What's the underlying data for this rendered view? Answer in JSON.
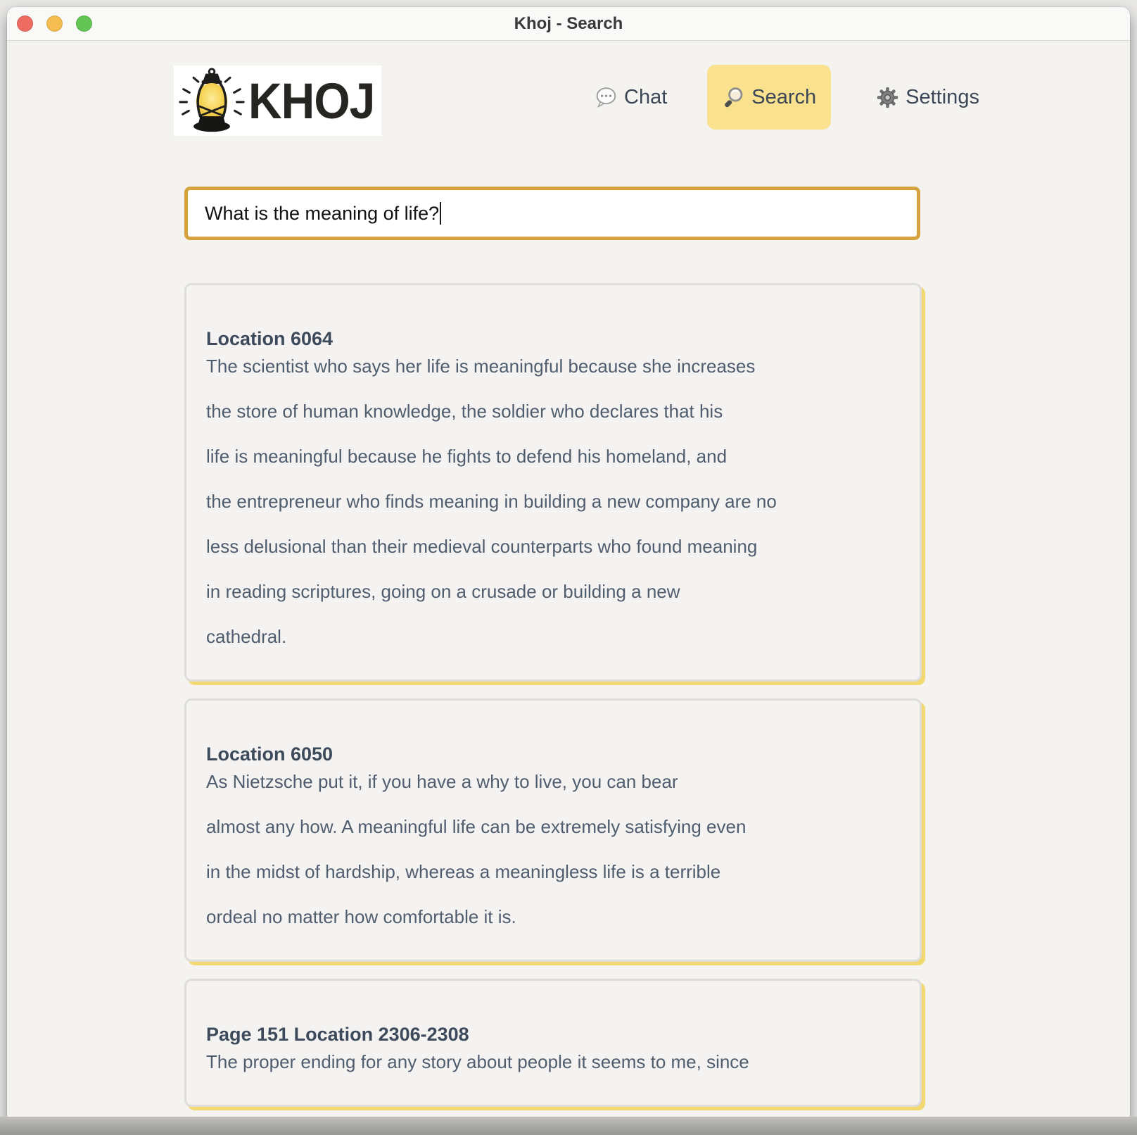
{
  "window": {
    "title": "Khoj - Search"
  },
  "brand": {
    "name": "KHOJ",
    "logo_icon": "lantern-icon"
  },
  "nav": {
    "chat": {
      "label": "Chat",
      "icon": "chat-bubble-icon"
    },
    "search": {
      "label": "Search",
      "icon": "magnifier-icon",
      "active": true
    },
    "settings": {
      "label": "Settings",
      "icon": "gear-icon"
    }
  },
  "search": {
    "value": "What is the meaning of life?"
  },
  "results": [
    {
      "heading": "Location 6064",
      "lines": [
        "The scientist who says her life is meaningful because she increases",
        "the store of human knowledge, the soldier who declares that his",
        "life is meaningful because he fights to defend his homeland, and",
        "the entrepreneur who finds meaning in building a new company are no",
        "less delusional than their medieval counterparts who found meaning",
        "in reading scriptures, going on a crusade or building a new",
        "cathedral."
      ]
    },
    {
      "heading": "Location 6050",
      "lines": [
        "As Nietzsche put it, if you have a why to live, you can bear",
        "almost any how. A meaningful life can be extremely satisfying even",
        "in the midst of hardship, whereas a meaningless life is a terrible",
        "ordeal no matter how comfortable it is."
      ]
    },
    {
      "heading": "Page 151 Location 2306-2308",
      "lines": [
        "The proper ending for any story about people it seems to me, since"
      ]
    }
  ],
  "colors": {
    "nav_active_highlight": "#f9e18e",
    "search_input_border": "#d6a23e",
    "card_accent_shadow": "#f3d76f",
    "traffic_close": "#ed6b60",
    "traffic_minimize": "#f5bd4f",
    "traffic_zoom": "#62c554"
  }
}
